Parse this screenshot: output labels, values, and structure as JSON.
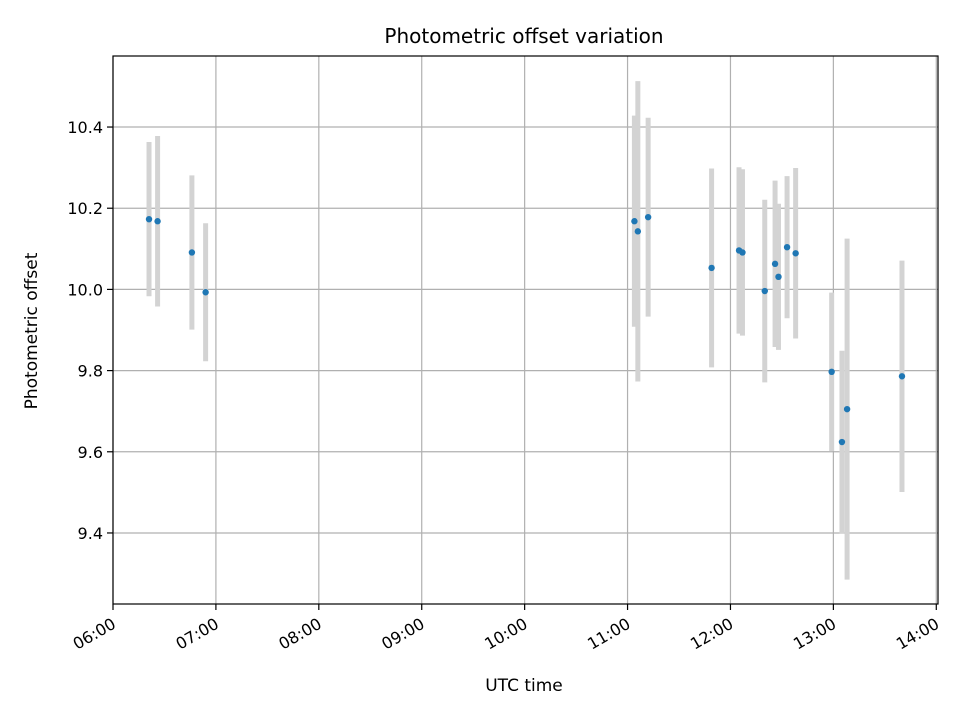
{
  "chart_data": {
    "type": "scatter",
    "title": "Photometric offset variation",
    "xlabel": "UTC time",
    "ylabel": "Photometric offset",
    "x_tick_labels": [
      "06:00",
      "07:00",
      "08:00",
      "09:00",
      "10:00",
      "11:00",
      "12:00",
      "13:00",
      "14:00"
    ],
    "y_tick_labels": [
      "9.4",
      "9.6",
      "9.8",
      "10.0",
      "10.2",
      "10.4"
    ],
    "y_ticks": [
      9.4,
      9.6,
      9.8,
      10.0,
      10.2,
      10.4
    ],
    "xlim": [
      "06:00",
      "14:01"
    ],
    "ylim": [
      9.225,
      10.575
    ],
    "grid": true,
    "colors": {
      "points": "#1f77b4",
      "error_bars": "#d3d3d3",
      "grid": "#b0b0b0"
    },
    "points": [
      {
        "time": "06:21",
        "y": 10.173,
        "err": 0.19
      },
      {
        "time": "06:26",
        "y": 10.168,
        "err": 0.21
      },
      {
        "time": "06:46",
        "y": 10.091,
        "err": 0.19
      },
      {
        "time": "06:54",
        "y": 9.993,
        "err": 0.17
      },
      {
        "time": "11:04",
        "y": 10.168,
        "err": 0.26
      },
      {
        "time": "11:06",
        "y": 10.143,
        "err": 0.37
      },
      {
        "time": "11:12",
        "y": 10.178,
        "err": 0.245
      },
      {
        "time": "11:49",
        "y": 10.053,
        "err": 0.245
      },
      {
        "time": "12:05",
        "y": 10.096,
        "err": 0.205
      },
      {
        "time": "12:07",
        "y": 10.091,
        "err": 0.205
      },
      {
        "time": "12:20",
        "y": 9.996,
        "err": 0.225
      },
      {
        "time": "12:26",
        "y": 10.063,
        "err": 0.205
      },
      {
        "time": "12:28",
        "y": 10.031,
        "err": 0.18
      },
      {
        "time": "12:33",
        "y": 10.104,
        "err": 0.175
      },
      {
        "time": "12:38",
        "y": 10.089,
        "err": 0.21
      },
      {
        "time": "12:59",
        "y": 9.797,
        "err": 0.195
      },
      {
        "time": "13:05",
        "y": 9.624,
        "err": 0.225
      },
      {
        "time": "13:08",
        "y": 9.705,
        "err": 0.42
      },
      {
        "time": "13:40",
        "y": 9.786,
        "err": 0.285
      }
    ]
  }
}
